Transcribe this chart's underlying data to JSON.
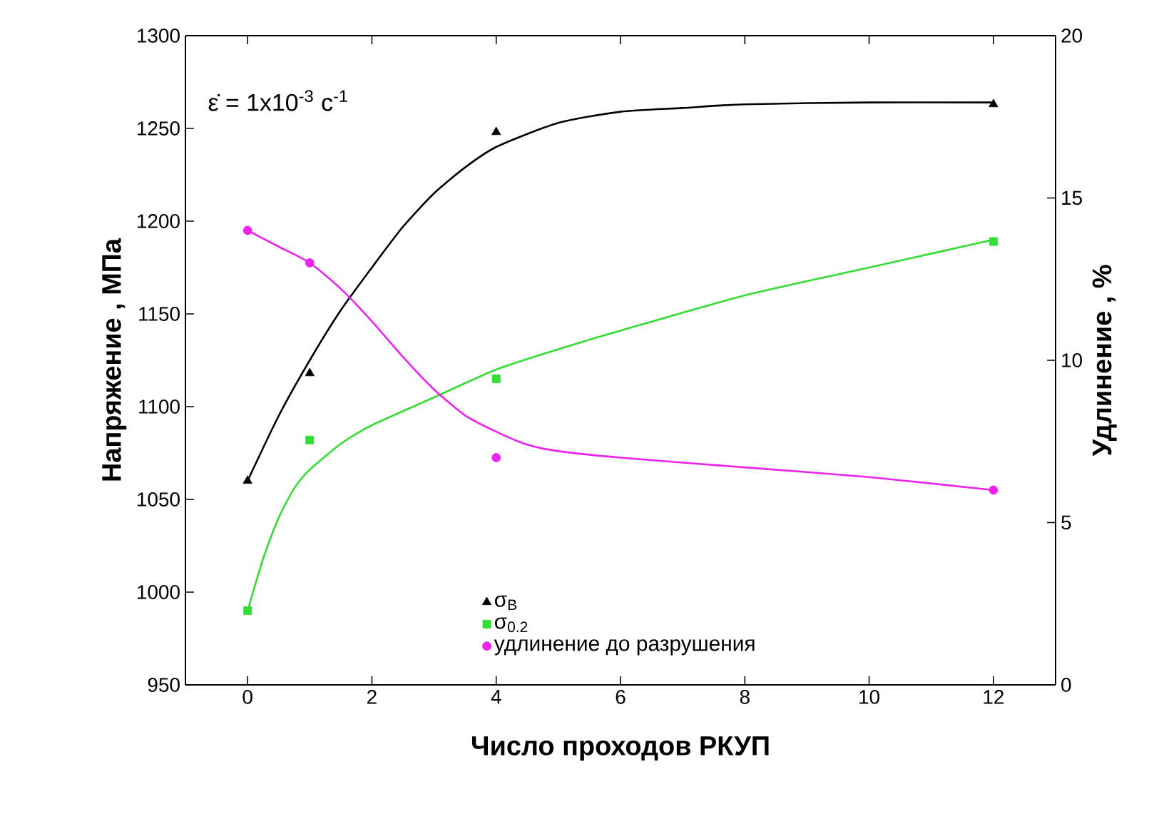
{
  "chart_data": {
    "type": "scatter",
    "xlabel": "Число проходов  РКУП",
    "ylabel": "Напряжение , МПа",
    "y2label": "Удлинение , %",
    "annotations": [
      "ε̇ = 1x10$^{-3}$ c$^{-1}$"
    ],
    "xlim": [
      -1,
      13
    ],
    "xticks": [
      0,
      2,
      4,
      6,
      8,
      10,
      12
    ],
    "ylim": [
      950,
      1300
    ],
    "yticks": [
      950,
      1000,
      1050,
      1100,
      1150,
      1200,
      1250,
      1300
    ],
    "y2lim": [
      0,
      20
    ],
    "y2ticks": [
      0,
      5,
      10,
      15,
      20
    ],
    "legend": "bottom",
    "grid": false,
    "series": [
      {
        "name": "σ$_{В}$",
        "marker": "triangle",
        "color": "#000000",
        "x": [
          0,
          1,
          4,
          12
        ],
        "values": [
          1060,
          1118,
          1248,
          1263
        ]
      },
      {
        "name": "σ$_{0.2}$",
        "marker": "square",
        "color": "#33dd33",
        "x": [
          0,
          1,
          4,
          12
        ],
        "values": [
          990,
          1082,
          1115,
          1189
        ]
      },
      {
        "name": "удлинение до разрушения",
        "marker": "circle",
        "color": "#ee22ee",
        "axis": "y2",
        "x": [
          0,
          1,
          4,
          12
        ],
        "values": [
          14,
          13,
          7,
          6
        ]
      },
      {
        "type": "line",
        "marker": "none",
        "color": "#000000",
        "x": [
          0,
          0.5,
          1,
          1.5,
          2,
          2.5,
          3,
          3.5,
          4,
          5,
          6,
          7,
          8,
          10,
          12
        ],
        "values": [
          1060,
          1095,
          1125,
          1152,
          1175,
          1197,
          1215,
          1229,
          1240,
          1253,
          1259,
          1261,
          1263,
          1264,
          1264
        ]
      },
      {
        "type": "line",
        "marker": "none",
        "color": "#33dd33",
        "x": [
          0,
          0.25,
          0.5,
          0.75,
          1,
          1.5,
          2,
          3,
          4,
          5,
          6,
          8,
          10,
          12
        ],
        "values": [
          990,
          1018,
          1040,
          1056,
          1066,
          1080,
          1090,
          1105,
          1120,
          1131,
          1141,
          1160,
          1175,
          1190
        ]
      },
      {
        "type": "line",
        "marker": "none",
        "color": "#ee22ee",
        "axis": "y2",
        "x": [
          0,
          0.5,
          1,
          1.5,
          2,
          2.5,
          3,
          3.5,
          4,
          4.5,
          5,
          6,
          8,
          10,
          12
        ],
        "values": [
          14,
          13.5,
          13,
          12.2,
          11.2,
          10.1,
          9.1,
          8.3,
          7.8,
          7.4,
          7.2,
          7.0,
          6.7,
          6.4,
          6.0
        ]
      }
    ]
  }
}
